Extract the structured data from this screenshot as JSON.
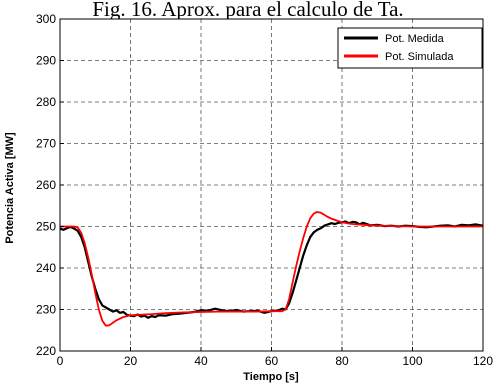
{
  "caption": "Fig. 16. Aprox. para el calculo de Ta.",
  "chart_data": {
    "type": "line",
    "title": "",
    "xlabel": "Tiempo [s]",
    "ylabel": "Potencia Activa [MW]",
    "xlim": [
      0,
      120
    ],
    "ylim": [
      220,
      300
    ],
    "xticks": [
      0,
      20,
      40,
      60,
      80,
      100,
      120
    ],
    "yticks": [
      220,
      230,
      240,
      250,
      260,
      270,
      280,
      290,
      300
    ],
    "grid": true,
    "legend_position": "top-right",
    "series": [
      {
        "name": "Pot. Medida",
        "color": "#000000",
        "x": [
          0,
          1,
          2,
          3,
          4,
          5,
          6,
          7,
          8,
          9,
          10,
          11,
          12,
          13,
          14,
          15,
          16,
          17,
          18,
          19,
          20,
          21,
          22,
          23,
          24,
          25,
          26,
          27,
          28,
          30,
          32,
          34,
          36,
          38,
          40,
          42,
          44,
          46,
          48,
          50,
          52,
          54,
          56,
          58,
          60,
          62,
          63,
          64,
          65,
          66,
          67,
          68,
          69,
          70,
          71,
          72,
          73,
          74,
          75,
          76,
          77,
          78,
          79,
          80,
          81,
          82,
          83,
          84,
          85,
          86,
          87,
          88,
          90,
          92,
          94,
          96,
          98,
          100,
          102,
          104,
          106,
          108,
          110,
          112,
          114,
          116,
          118,
          120
        ],
        "y": [
          249.5,
          249.2,
          249.6,
          249.9,
          249.5,
          249.0,
          247.5,
          245.0,
          241.5,
          238.0,
          235.0,
          232.5,
          231.0,
          230.5,
          230.0,
          229.5,
          229.8,
          229.2,
          229.4,
          228.7,
          228.5,
          228.4,
          228.8,
          228.3,
          228.5,
          228.0,
          228.4,
          228.2,
          228.6,
          228.5,
          228.9,
          229.0,
          229.2,
          229.4,
          229.8,
          229.7,
          230.2,
          229.8,
          229.6,
          229.9,
          229.5,
          229.6,
          229.7,
          229.2,
          229.6,
          229.8,
          230.2,
          230.0,
          231.5,
          234.0,
          237.0,
          240.0,
          243.0,
          245.5,
          247.5,
          248.6,
          249.2,
          249.6,
          250.2,
          250.5,
          250.8,
          250.6,
          250.9,
          251.0,
          251.2,
          250.8,
          251.1,
          251.0,
          250.5,
          250.9,
          250.6,
          250.3,
          250.4,
          250.1,
          250.2,
          250.0,
          250.2,
          250.1,
          249.9,
          249.8,
          250.0,
          250.2,
          250.3,
          250.0,
          250.4,
          250.3,
          250.5,
          250.2
        ]
      },
      {
        "name": "Pot. Simulada",
        "color": "#ff0000",
        "x": [
          0,
          2,
          4,
          5,
          6,
          7,
          8,
          9,
          10,
          11,
          12,
          13,
          14,
          15,
          16,
          18,
          20,
          22,
          24,
          26,
          28,
          30,
          35,
          40,
          45,
          50,
          55,
          60,
          63,
          64,
          65,
          66,
          67,
          68,
          69,
          70,
          71,
          72,
          73,
          74,
          75,
          76,
          77,
          78,
          79,
          80,
          82,
          84,
          86,
          88,
          90,
          95,
          100,
          105,
          110,
          115,
          120
        ],
        "y": [
          250.0,
          250.0,
          250.0,
          249.8,
          248.5,
          246.0,
          242.5,
          238.5,
          234.0,
          230.0,
          227.3,
          226.1,
          226.2,
          226.8,
          227.4,
          228.2,
          228.6,
          228.7,
          228.8,
          228.9,
          229.0,
          229.1,
          229.3,
          229.4,
          229.5,
          229.5,
          229.5,
          229.6,
          229.6,
          230.0,
          232.5,
          236.5,
          240.5,
          244.0,
          247.2,
          250.0,
          252.0,
          253.1,
          253.5,
          253.3,
          252.8,
          252.3,
          251.9,
          251.6,
          251.3,
          251.0,
          250.7,
          250.5,
          250.4,
          250.3,
          250.2,
          250.1,
          250.0,
          250.0,
          250.0,
          250.0,
          250.0
        ]
      }
    ]
  }
}
